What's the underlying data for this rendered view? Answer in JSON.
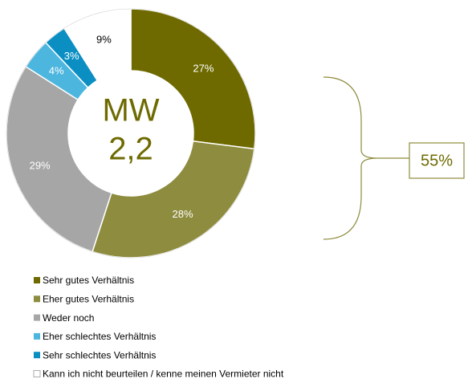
{
  "chart_data": {
    "type": "donut",
    "categories": [
      "Sehr gutes Verhältnis",
      "Eher gutes Verhältnis",
      "Weder noch",
      "Eher schlechtes Verhältnis",
      "Sehr schlechtes Verhältnis",
      "Kann ich nicht beurteilen / kenne meinen Vermieter nicht"
    ],
    "values": [
      27,
      28,
      29,
      4,
      3,
      9
    ],
    "value_labels": [
      "27%",
      "28%",
      "29%",
      "4%",
      "3%",
      "9%"
    ],
    "colors": [
      "#6e6a00",
      "#8e8c3e",
      "#a6a6a6",
      "#4cb6df",
      "#0b8fc3",
      "#ffffff"
    ],
    "center_label": "MW",
    "center_value": "2,2",
    "annotation": "55%"
  }
}
